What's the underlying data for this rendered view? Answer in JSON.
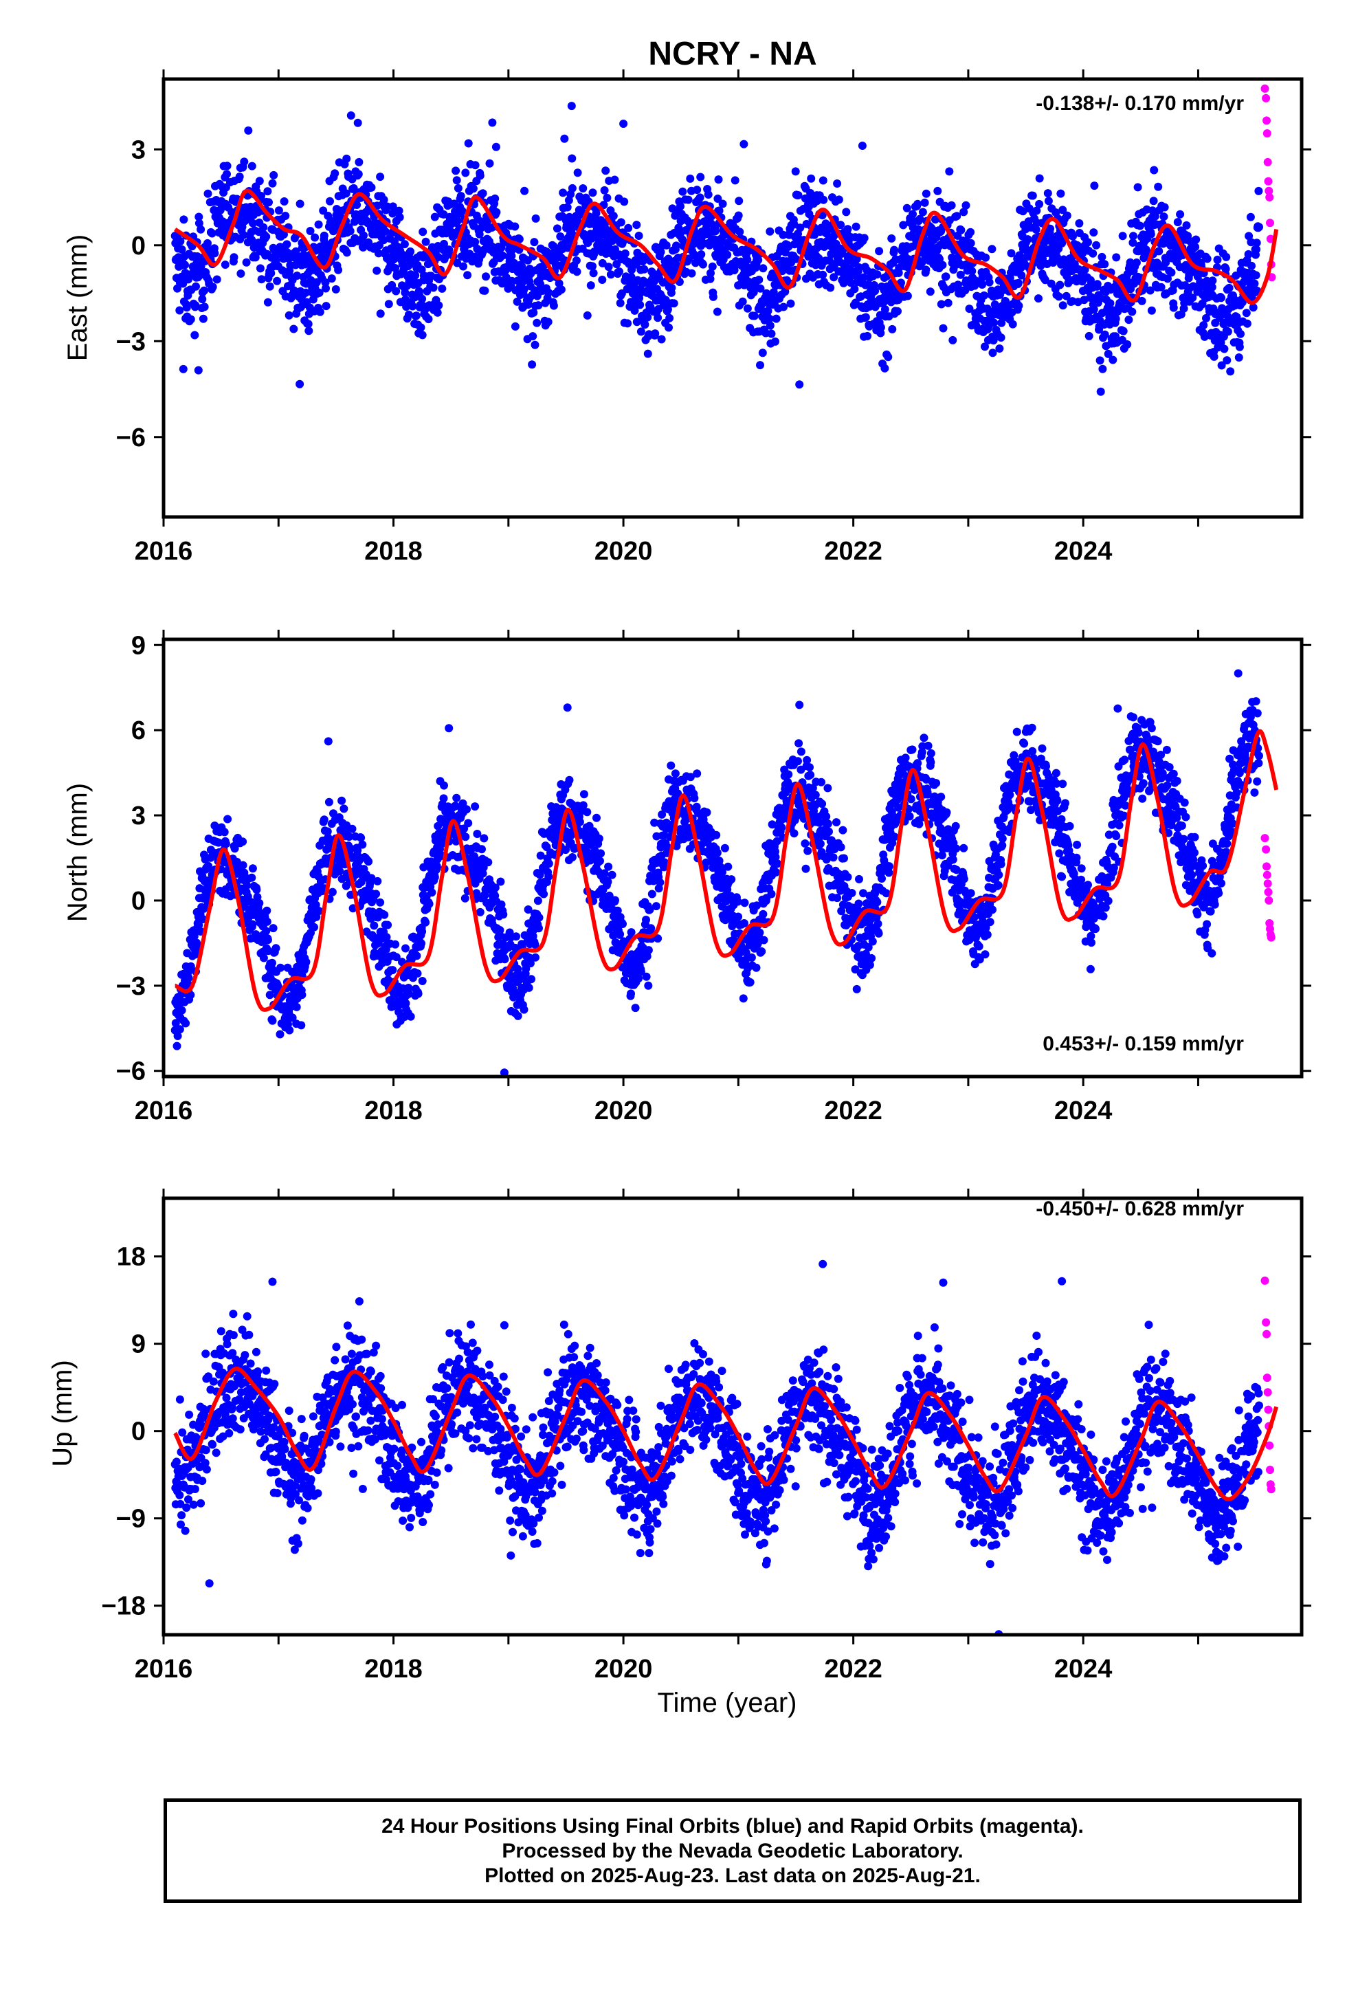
{
  "colors": {
    "final": "#0000ff",
    "rapid": "#ff00ff",
    "model": "#ff0000",
    "frame": "#000000"
  },
  "title": "NCRY - NA",
  "footer": {
    "line1": "24 Hour Positions Using Final Orbits (blue) and Rapid Orbits (magenta).",
    "line2": "Processed by the Nevada Geodetic Laboratory.",
    "line3": "Plotted on 2025-Aug-23. Last data on 2025-Aug-21."
  },
  "chart_data": [
    {
      "type": "scatter",
      "component": "east",
      "ylabel": "East (mm)",
      "xlabel": "",
      "rate_label": "-0.138+/- 0.170 mm/yr",
      "rate_position": "top-right",
      "xlim": [
        2016.0,
        2025.9
      ],
      "ylim": [
        -8.5,
        5.2
      ],
      "xticks": [
        2016,
        2018,
        2020,
        2022,
        2024
      ],
      "yticks": [
        3,
        0,
        -3,
        -6
      ],
      "tick_labels_x": [
        "2016",
        "2018",
        "2020",
        "2022",
        "2024"
      ],
      "tick_labels_y": [
        "3",
        "0",
        "−3",
        "−6"
      ],
      "series": [
        {
          "role": "final_orbits",
          "generator": {
            "start": 2016.1,
            "end": 2025.53,
            "step_days": 1.2,
            "offset": 0.25,
            "trend": -0.138,
            "ann_amp": 1.1,
            "ann_phase": 2016.45,
            "semi_amp": 0.3,
            "noise": 1.1
          }
        },
        {
          "role": "rapid_orbits",
          "x": [
            2025.58,
            2025.59,
            2025.595,
            2025.6,
            2025.605,
            2025.61,
            2025.615,
            2025.62,
            2025.625,
            2025.63,
            2025.635,
            2025.64
          ],
          "y": [
            4.9,
            4.6,
            3.9,
            3.5,
            2.6,
            2.0,
            1.7,
            1.5,
            0.7,
            0.2,
            -0.6,
            -1.0
          ]
        },
        {
          "role": "model_fit",
          "points": [
            [
              2016.1,
              0.5
            ],
            [
              2016.3,
              0.0
            ],
            [
              2016.45,
              -0.6
            ],
            [
              2016.6,
              0.6
            ],
            [
              2016.72,
              1.7
            ],
            [
              2016.9,
              1.0
            ],
            [
              2017.05,
              0.5
            ],
            [
              2017.2,
              0.3
            ],
            [
              2017.4,
              -0.7
            ],
            [
              2017.55,
              0.6
            ],
            [
              2017.7,
              1.6
            ],
            [
              2017.9,
              0.8
            ],
            [
              2018.1,
              0.3
            ],
            [
              2018.3,
              -0.2
            ],
            [
              2018.45,
              -0.9
            ],
            [
              2018.6,
              0.5
            ],
            [
              2018.72,
              1.5
            ],
            [
              2018.95,
              0.3
            ],
            [
              2019.1,
              0.0
            ],
            [
              2019.3,
              -0.4
            ],
            [
              2019.45,
              -1.0
            ],
            [
              2019.62,
              0.5
            ],
            [
              2019.75,
              1.3
            ],
            [
              2019.95,
              0.4
            ],
            [
              2020.15,
              0.0
            ],
            [
              2020.3,
              -0.6
            ],
            [
              2020.45,
              -1.1
            ],
            [
              2020.6,
              0.5
            ],
            [
              2020.72,
              1.2
            ],
            [
              2020.95,
              0.3
            ],
            [
              2021.15,
              -0.1
            ],
            [
              2021.3,
              -0.6
            ],
            [
              2021.45,
              -1.3
            ],
            [
              2021.62,
              0.4
            ],
            [
              2021.75,
              1.1
            ],
            [
              2021.95,
              -0.1
            ],
            [
              2022.15,
              -0.4
            ],
            [
              2022.3,
              -0.8
            ],
            [
              2022.45,
              -1.4
            ],
            [
              2022.6,
              0.3
            ],
            [
              2022.72,
              1.0
            ],
            [
              2022.95,
              -0.3
            ],
            [
              2023.15,
              -0.6
            ],
            [
              2023.3,
              -1.0
            ],
            [
              2023.45,
              -1.6
            ],
            [
              2023.62,
              0.2
            ],
            [
              2023.75,
              0.8
            ],
            [
              2023.95,
              -0.4
            ],
            [
              2024.15,
              -0.8
            ],
            [
              2024.3,
              -1.1
            ],
            [
              2024.45,
              -1.7
            ],
            [
              2024.62,
              0.0
            ],
            [
              2024.75,
              0.6
            ],
            [
              2024.95,
              -0.6
            ],
            [
              2025.15,
              -0.8
            ],
            [
              2025.3,
              -1.1
            ],
            [
              2025.47,
              -1.8
            ],
            [
              2025.6,
              -1.0
            ],
            [
              2025.68,
              0.5
            ]
          ]
        }
      ]
    },
    {
      "type": "scatter",
      "component": "north",
      "ylabel": "North (mm)",
      "xlabel": "",
      "rate_label": "0.453+/- 0.159 mm/yr",
      "rate_position": "bottom-right",
      "xlim": [
        2016.0,
        2025.9
      ],
      "ylim": [
        -6.2,
        9.2
      ],
      "xticks": [
        2016,
        2018,
        2020,
        2022,
        2024
      ],
      "yticks": [
        9,
        6,
        3,
        0,
        -3,
        -6
      ],
      "tick_labels_x": [
        "2016",
        "2018",
        "2020",
        "2022",
        "2024"
      ],
      "tick_labels_y": [
        "9",
        "6",
        "3",
        "0",
        "−3",
        "−6"
      ],
      "series": [
        {
          "role": "final_orbits",
          "generator": {
            "start": 2016.1,
            "end": 2025.53,
            "step_days": 1.2,
            "offset": -1.1,
            "trend": 0.453,
            "ann_amp": 2.6,
            "ann_phase": 2016.3,
            "semi_amp": 0.5,
            "noise": 1.0
          }
        },
        {
          "role": "rapid_orbits",
          "x": [
            2025.58,
            2025.59,
            2025.595,
            2025.6,
            2025.605,
            2025.61,
            2025.615,
            2025.62,
            2025.625,
            2025.63,
            2025.635
          ],
          "y": [
            2.2,
            1.8,
            1.2,
            0.9,
            0.6,
            0.3,
            0.0,
            -0.8,
            -1.0,
            -1.2,
            -1.3
          ]
        },
        {
          "role": "model_fit",
          "points": [
            [
              2016.1,
              -3.0
            ],
            [
              2016.25,
              -3.0
            ],
            [
              2016.4,
              -0.3
            ],
            [
              2016.52,
              1.8
            ],
            [
              2016.65,
              0.0
            ],
            [
              2016.8,
              -3.3
            ],
            [
              2016.92,
              -3.8
            ],
            [
              2017.1,
              -2.8
            ],
            [
              2017.3,
              -2.5
            ],
            [
              2017.42,
              0.3
            ],
            [
              2017.52,
              2.3
            ],
            [
              2017.65,
              0.5
            ],
            [
              2017.8,
              -2.8
            ],
            [
              2017.92,
              -3.3
            ],
            [
              2018.1,
              -2.3
            ],
            [
              2018.3,
              -2.0
            ],
            [
              2018.42,
              0.8
            ],
            [
              2018.52,
              2.8
            ],
            [
              2018.65,
              0.8
            ],
            [
              2018.8,
              -2.3
            ],
            [
              2018.92,
              -2.8
            ],
            [
              2019.1,
              -1.8
            ],
            [
              2019.3,
              -1.5
            ],
            [
              2019.42,
              1.3
            ],
            [
              2019.52,
              3.2
            ],
            [
              2019.65,
              1.2
            ],
            [
              2019.8,
              -1.8
            ],
            [
              2019.92,
              -2.4
            ],
            [
              2020.1,
              -1.3
            ],
            [
              2020.3,
              -1.0
            ],
            [
              2020.42,
              1.8
            ],
            [
              2020.52,
              3.7
            ],
            [
              2020.65,
              1.7
            ],
            [
              2020.8,
              -1.4
            ],
            [
              2020.92,
              -1.9
            ],
            [
              2021.1,
              -0.9
            ],
            [
              2021.3,
              -0.6
            ],
            [
              2021.42,
              2.3
            ],
            [
              2021.52,
              4.1
            ],
            [
              2021.65,
              2.0
            ],
            [
              2021.8,
              -1.0
            ],
            [
              2021.92,
              -1.5
            ],
            [
              2022.1,
              -0.4
            ],
            [
              2022.3,
              -0.2
            ],
            [
              2022.42,
              2.7
            ],
            [
              2022.52,
              4.6
            ],
            [
              2022.65,
              2.5
            ],
            [
              2022.8,
              -0.6
            ],
            [
              2022.92,
              -1.0
            ],
            [
              2023.1,
              0.0
            ],
            [
              2023.3,
              0.3
            ],
            [
              2023.42,
              3.1
            ],
            [
              2023.52,
              5.0
            ],
            [
              2023.65,
              3.0
            ],
            [
              2023.8,
              -0.2
            ],
            [
              2023.92,
              -0.6
            ],
            [
              2024.1,
              0.4
            ],
            [
              2024.3,
              0.7
            ],
            [
              2024.42,
              3.6
            ],
            [
              2024.52,
              5.5
            ],
            [
              2024.65,
              3.5
            ],
            [
              2024.8,
              0.3
            ],
            [
              2024.92,
              -0.1
            ],
            [
              2025.1,
              1.0
            ],
            [
              2025.25,
              1.2
            ],
            [
              2025.4,
              3.8
            ],
            [
              2025.52,
              5.9
            ],
            [
              2025.6,
              5.3
            ],
            [
              2025.68,
              3.9
            ]
          ]
        }
      ]
    },
    {
      "type": "scatter",
      "component": "up",
      "ylabel": "Up (mm)",
      "xlabel": "Time (year)",
      "rate_label": "-0.450+/- 0.628 mm/yr",
      "rate_position": "top-right",
      "xlim": [
        2016.0,
        2025.9
      ],
      "ylim": [
        -21,
        24
      ],
      "xticks": [
        2016,
        2018,
        2020,
        2022,
        2024
      ],
      "yticks": [
        18,
        9,
        0,
        -9,
        -18
      ],
      "tick_labels_x": [
        "2016",
        "2018",
        "2020",
        "2022",
        "2024"
      ],
      "tick_labels_y": [
        "18",
        "9",
        "0",
        "−9",
        "−18"
      ],
      "series": [
        {
          "role": "final_orbits",
          "generator": {
            "start": 2016.1,
            "end": 2025.53,
            "step_days": 1.2,
            "offset": 1.0,
            "trend": -0.45,
            "ann_amp": 5.2,
            "ann_phase": 2016.4,
            "semi_amp": 0.8,
            "noise": 4.0
          }
        },
        {
          "role": "rapid_orbits",
          "x": [
            2025.58,
            2025.59,
            2025.595,
            2025.6,
            2025.605,
            2025.61,
            2025.615,
            2025.62,
            2025.625,
            2025.63,
            2025.635
          ],
          "y": [
            15.5,
            11.2,
            10.0,
            5.5,
            4.0,
            2.2,
            0.5,
            -1.5,
            -4.0,
            -5.5,
            -6.0
          ]
        },
        {
          "role": "model_fit",
          "points": [
            [
              2016.1,
              -0.2
            ],
            [
              2016.25,
              -2.8
            ],
            [
              2016.45,
              3.0
            ],
            [
              2016.62,
              6.4
            ],
            [
              2016.8,
              4.5
            ],
            [
              2017.0,
              1.5
            ],
            [
              2017.15,
              -2.0
            ],
            [
              2017.3,
              -3.8
            ],
            [
              2017.5,
              2.5
            ],
            [
              2017.65,
              6.1
            ],
            [
              2017.85,
              4.0
            ],
            [
              2018.0,
              1.0
            ],
            [
              2018.15,
              -2.5
            ],
            [
              2018.28,
              -4.0
            ],
            [
              2018.5,
              2.0
            ],
            [
              2018.65,
              5.7
            ],
            [
              2018.85,
              3.5
            ],
            [
              2019.0,
              0.5
            ],
            [
              2019.15,
              -3.0
            ],
            [
              2019.28,
              -4.3
            ],
            [
              2019.5,
              1.5
            ],
            [
              2019.65,
              5.2
            ],
            [
              2019.85,
              3.0
            ],
            [
              2020.0,
              0.0
            ],
            [
              2020.15,
              -3.5
            ],
            [
              2020.28,
              -4.8
            ],
            [
              2020.5,
              1.0
            ],
            [
              2020.65,
              4.8
            ],
            [
              2020.85,
              2.5
            ],
            [
              2021.0,
              -0.5
            ],
            [
              2021.15,
              -4.0
            ],
            [
              2021.28,
              -5.2
            ],
            [
              2021.5,
              0.5
            ],
            [
              2021.65,
              4.4
            ],
            [
              2021.85,
              2.0
            ],
            [
              2022.0,
              -1.0
            ],
            [
              2022.15,
              -4.3
            ],
            [
              2022.28,
              -5.6
            ],
            [
              2022.5,
              0.0
            ],
            [
              2022.65,
              3.9
            ],
            [
              2022.85,
              1.5
            ],
            [
              2023.0,
              -1.5
            ],
            [
              2023.15,
              -4.8
            ],
            [
              2023.28,
              -6.0
            ],
            [
              2023.5,
              -0.5
            ],
            [
              2023.65,
              3.5
            ],
            [
              2023.85,
              1.0
            ],
            [
              2024.0,
              -2.0
            ],
            [
              2024.15,
              -5.2
            ],
            [
              2024.28,
              -6.5
            ],
            [
              2024.5,
              -1.0
            ],
            [
              2024.65,
              3.0
            ],
            [
              2024.85,
              0.5
            ],
            [
              2025.0,
              -2.5
            ],
            [
              2025.15,
              -5.7
            ],
            [
              2025.28,
              -7.0
            ],
            [
              2025.45,
              -4.5
            ],
            [
              2025.6,
              -0.5
            ],
            [
              2025.68,
              2.5
            ]
          ]
        }
      ]
    }
  ]
}
